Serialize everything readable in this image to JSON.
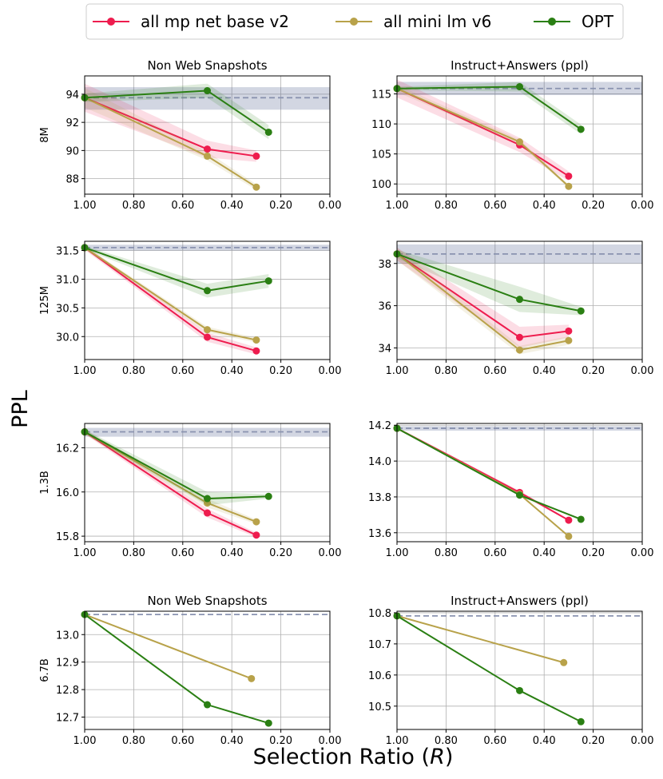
{
  "figure": {
    "ylabel": "PPL",
    "xlabel": "Selection Ratio (",
    "xlabel_var": "R",
    "xlabel_close": ")",
    "legend": [
      {
        "label": "all mp net base v2",
        "color": "#ee1c4e"
      },
      {
        "label": "all mini lm v6",
        "color": "#b8a24a"
      },
      {
        "label": "OPT",
        "color": "#2a7f13"
      }
    ]
  },
  "chart_data": [
    {
      "type": "line",
      "row": 0,
      "col": 0,
      "model_size": "8M",
      "title": "Non Web Snapshots",
      "xlim": [
        1.0,
        0.0
      ],
      "xticks": [
        "1.00",
        "0.80",
        "0.60",
        "0.40",
        "0.20",
        "0.00"
      ],
      "xtick_values": [
        1.0,
        0.8,
        0.6,
        0.4,
        0.2,
        0.0
      ],
      "ylim": [
        86.9,
        95.3
      ],
      "yticks": [
        "88",
        "90",
        "92",
        "94"
      ],
      "ytick_values": [
        88,
        90,
        92,
        94
      ],
      "baseline": 93.75,
      "baseline_band": [
        92.9,
        94.5
      ],
      "series": [
        {
          "name": "all mp net base v2",
          "x": [
            1.0,
            0.5,
            0.3
          ],
          "y": [
            93.75,
            90.1,
            89.6
          ],
          "band": [
            1.0,
            0.6,
            0.4
          ]
        },
        {
          "name": "all mini lm v6",
          "x": [
            1.0,
            0.5,
            0.3
          ],
          "y": [
            93.75,
            89.6,
            87.4
          ],
          "band": [
            0.7,
            0.3,
            0.2
          ]
        },
        {
          "name": "OPT",
          "x": [
            1.0,
            0.5,
            0.25
          ],
          "y": [
            93.75,
            94.25,
            91.3
          ],
          "band": [
            0.3,
            0.5,
            0.5
          ]
        }
      ]
    },
    {
      "type": "line",
      "row": 0,
      "col": 1,
      "model_size": "8M",
      "title": "Instruct+Answers (ppl)",
      "xlim": [
        1.0,
        0.0
      ],
      "xticks": [
        "1.00",
        "0.80",
        "0.60",
        "0.40",
        "0.20",
        "0.00"
      ],
      "xtick_values": [
        1.0,
        0.8,
        0.6,
        0.4,
        0.2,
        0.0
      ],
      "ylim": [
        98.3,
        118.0
      ],
      "yticks": [
        "100",
        "105",
        "110",
        "115"
      ],
      "ytick_values": [
        100,
        105,
        110,
        115
      ],
      "baseline": 115.9,
      "baseline_band": [
        114.8,
        117.0
      ],
      "series": [
        {
          "name": "all mp net base v2",
          "x": [
            1.0,
            0.5,
            0.3
          ],
          "y": [
            115.9,
            106.5,
            101.3
          ],
          "band": [
            1.5,
            1.2,
            0.8
          ]
        },
        {
          "name": "all mini lm v6",
          "x": [
            1.0,
            0.5,
            0.3
          ],
          "y": [
            115.9,
            107.0,
            99.6
          ],
          "band": [
            0.6,
            0.4,
            0.3
          ]
        },
        {
          "name": "OPT",
          "x": [
            1.0,
            0.5,
            0.25
          ],
          "y": [
            115.9,
            116.2,
            109.1
          ],
          "band": [
            0.3,
            0.8,
            0.8
          ]
        }
      ]
    },
    {
      "type": "line",
      "row": 1,
      "col": 0,
      "model_size": "125M",
      "title": "",
      "xlim": [
        1.0,
        0.0
      ],
      "xticks": [
        "1.00",
        "0.80",
        "0.60",
        "0.40",
        "0.20",
        "0.00"
      ],
      "xtick_values": [
        1.0,
        0.8,
        0.6,
        0.4,
        0.2,
        0.0
      ],
      "ylim": [
        29.6,
        31.66
      ],
      "yticks": [
        "30.0",
        "30.5",
        "31.0",
        "31.5"
      ],
      "ytick_values": [
        30.0,
        30.5,
        31.0,
        31.5
      ],
      "baseline": 31.55,
      "baseline_band": [
        31.5,
        31.6
      ],
      "series": [
        {
          "name": "all mp net base v2",
          "x": [
            1.0,
            0.5,
            0.3
          ],
          "y": [
            31.55,
            29.99,
            29.75
          ],
          "band": [
            0.04,
            0.08,
            0.06
          ]
        },
        {
          "name": "all mini lm v6",
          "x": [
            1.0,
            0.5,
            0.3
          ],
          "y": [
            31.55,
            30.12,
            29.94
          ],
          "band": [
            0.03,
            0.05,
            0.04
          ]
        },
        {
          "name": "OPT",
          "x": [
            1.0,
            0.5,
            0.25
          ],
          "y": [
            31.55,
            30.8,
            30.97
          ],
          "band": [
            0.03,
            0.12,
            0.12
          ]
        }
      ]
    },
    {
      "type": "line",
      "row": 1,
      "col": 1,
      "model_size": "125M",
      "title": "",
      "xlim": [
        1.0,
        0.0
      ],
      "xticks": [
        "1.00",
        "0.80",
        "0.60",
        "0.40",
        "0.20",
        "0.00"
      ],
      "xtick_values": [
        1.0,
        0.8,
        0.6,
        0.4,
        0.2,
        0.0
      ],
      "ylim": [
        33.45,
        39.05
      ],
      "yticks": [
        "34",
        "36",
        "38"
      ],
      "ytick_values": [
        34,
        36,
        38
      ],
      "baseline": 38.45,
      "baseline_band": [
        38.0,
        38.9
      ],
      "series": [
        {
          "name": "all mp net base v2",
          "x": [
            1.0,
            0.5,
            0.3
          ],
          "y": [
            38.45,
            34.5,
            34.8
          ],
          "band": [
            0.3,
            0.5,
            0.3
          ]
        },
        {
          "name": "all mini lm v6",
          "x": [
            1.0,
            0.5,
            0.3
          ],
          "y": [
            38.45,
            33.9,
            34.35
          ],
          "band": [
            0.3,
            0.2,
            0.2
          ]
        },
        {
          "name": "OPT",
          "x": [
            1.0,
            0.5,
            0.25
          ],
          "y": [
            38.45,
            36.3,
            35.75
          ],
          "band": [
            0.2,
            0.6,
            0.2
          ]
        }
      ]
    },
    {
      "type": "line",
      "row": 2,
      "col": 0,
      "model_size": "1.3B",
      "title": "",
      "xlim": [
        1.0,
        0.0
      ],
      "xticks": [
        "1.00",
        "0.80",
        "0.60",
        "0.40",
        "0.20",
        "0.00"
      ],
      "xtick_values": [
        1.0,
        0.8,
        0.6,
        0.4,
        0.2,
        0.0
      ],
      "ylim": [
        15.775,
        16.31
      ],
      "yticks": [
        "15.8",
        "16.0",
        "16.2"
      ],
      "ytick_values": [
        15.8,
        16.0,
        16.2
      ],
      "baseline": 16.272,
      "baseline_band": [
        16.25,
        16.29
      ],
      "series": [
        {
          "name": "all mp net base v2",
          "x": [
            1.0,
            0.5,
            0.3
          ],
          "y": [
            16.272,
            15.905,
            15.805
          ],
          "band": [
            0.01,
            0.02,
            0.01
          ]
        },
        {
          "name": "all mini lm v6",
          "x": [
            1.0,
            0.5,
            0.3
          ],
          "y": [
            16.272,
            15.95,
            15.865
          ],
          "band": [
            0.01,
            0.02,
            0.01
          ]
        },
        {
          "name": "OPT",
          "x": [
            1.0,
            0.5,
            0.25
          ],
          "y": [
            16.272,
            15.97,
            15.98
          ],
          "band": [
            0.01,
            0.03,
            0.01
          ]
        }
      ]
    },
    {
      "type": "line",
      "row": 2,
      "col": 1,
      "model_size": "1.3B",
      "title": "",
      "xlim": [
        1.0,
        0.0
      ],
      "xticks": [
        "1.00",
        "0.80",
        "0.60",
        "0.40",
        "0.20",
        "0.00"
      ],
      "xtick_values": [
        1.0,
        0.8,
        0.6,
        0.4,
        0.2,
        0.0
      ],
      "ylim": [
        13.55,
        14.21
      ],
      "yticks": [
        "13.6",
        "13.8",
        "14.0",
        "14.2"
      ],
      "ytick_values": [
        13.6,
        13.8,
        14.0,
        14.2
      ],
      "baseline": 14.183,
      "baseline_band": [
        14.17,
        14.195
      ],
      "series": [
        {
          "name": "all mp net base v2",
          "x": [
            1.0,
            0.5,
            0.3
          ],
          "y": [
            14.183,
            13.825,
            13.67
          ],
          "band": [
            0.005,
            0.01,
            0.005
          ]
        },
        {
          "name": "all mini lm v6",
          "x": [
            1.0,
            0.5,
            0.3
          ],
          "y": [
            14.183,
            13.815,
            13.58
          ],
          "band": [
            0.005,
            0.005,
            0.005
          ]
        },
        {
          "name": "OPT",
          "x": [
            1.0,
            0.5,
            0.25
          ],
          "y": [
            14.183,
            13.81,
            13.675
          ],
          "band": [
            0.005,
            0.005,
            0.005
          ]
        }
      ]
    },
    {
      "type": "line",
      "row": 3,
      "col": 0,
      "model_size": "6.7B",
      "title": "Non Web Snapshots",
      "xlim": [
        1.0,
        0.0
      ],
      "xticks": [
        "1.00",
        "0.80",
        "0.60",
        "0.40",
        "0.20",
        "0.00"
      ],
      "xtick_values": [
        1.0,
        0.8,
        0.6,
        0.4,
        0.2,
        0.0
      ],
      "ylim": [
        12.655,
        13.085
      ],
      "yticks": [
        "12.7",
        "12.8",
        "12.9",
        "13.0"
      ],
      "ytick_values": [
        12.7,
        12.8,
        12.9,
        13.0
      ],
      "baseline": 13.073,
      "baseline_band": null,
      "series": [
        {
          "name": "all mini lm v6",
          "x": [
            1.0,
            0.32
          ],
          "y": [
            13.073,
            12.84
          ],
          "band": null
        },
        {
          "name": "OPT",
          "x": [
            1.0,
            0.5,
            0.25
          ],
          "y": [
            13.073,
            12.745,
            12.678
          ],
          "band": null
        }
      ]
    },
    {
      "type": "line",
      "row": 3,
      "col": 1,
      "model_size": "6.7B",
      "title": "Instruct+Answers (ppl)",
      "xlim": [
        1.0,
        0.0
      ],
      "xticks": [
        "1.00",
        "0.80",
        "0.60",
        "0.40",
        "0.20",
        "0.00"
      ],
      "xtick_values": [
        1.0,
        0.8,
        0.6,
        0.4,
        0.2,
        0.0
      ],
      "ylim": [
        10.425,
        10.805
      ],
      "yticks": [
        "10.5",
        "10.6",
        "10.7",
        "10.8"
      ],
      "ytick_values": [
        10.5,
        10.6,
        10.7,
        10.8
      ],
      "baseline": 10.79,
      "baseline_band": null,
      "series": [
        {
          "name": "all mini lm v6",
          "x": [
            1.0,
            0.32
          ],
          "y": [
            10.79,
            10.64
          ],
          "band": null
        },
        {
          "name": "OPT",
          "x": [
            1.0,
            0.5,
            0.25
          ],
          "y": [
            10.79,
            10.55,
            10.45
          ],
          "band": null
        }
      ]
    }
  ]
}
